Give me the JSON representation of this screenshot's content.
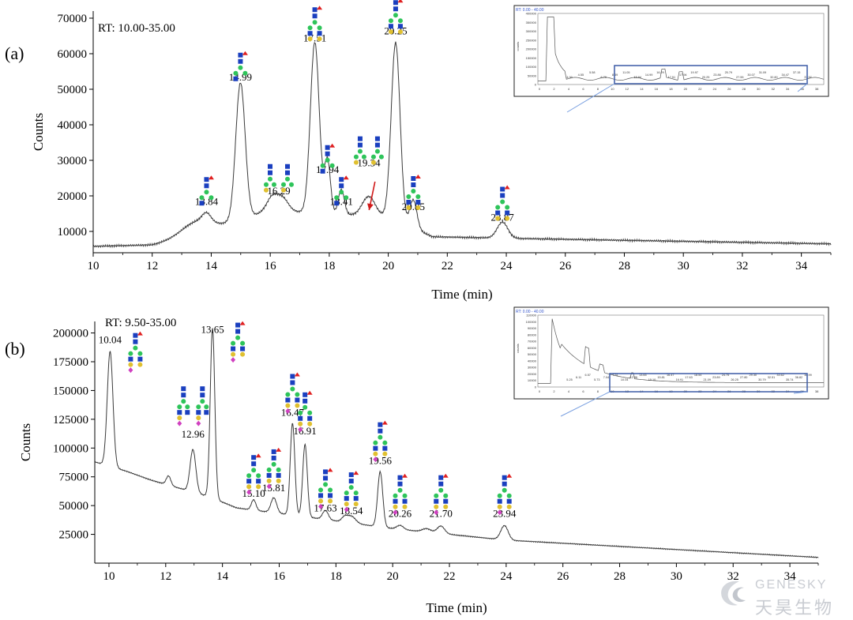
{
  "colors": {
    "trace": "#3a3a3a",
    "axis": "#000000",
    "arrow": "#d01818",
    "inset_box": "#3b5aa5",
    "inset_lines": "#7aa0e0",
    "watermark": "#c9ccd2"
  },
  "glycan_colors": {
    "blue_square": "#1a3fbf",
    "green_circle": "#2ec45a",
    "yellow_circle": "#e0c030",
    "red_triangle": "#e02020",
    "pink_diamond": "#d040c0"
  },
  "watermark": {
    "en": "GENESKY",
    "cn": "天昊生物"
  },
  "chart_data": [
    {
      "type": "line",
      "panel_label": "(a)",
      "rt_label": "RT: 10.00-35.00",
      "xlabel": "Time (min)",
      "ylabel": "Counts",
      "xlim": [
        10,
        35
      ],
      "ylim": [
        4000,
        72000
      ],
      "xticks": [
        10,
        12,
        14,
        16,
        18,
        20,
        22,
        24,
        26,
        28,
        30,
        32,
        34
      ],
      "yticks": [
        10000,
        20000,
        30000,
        40000,
        50000,
        60000,
        70000
      ],
      "baseline": {
        "x": [
          10,
          12,
          13,
          16,
          20,
          21.5,
          24.5,
          35
        ],
        "y": [
          5800,
          6200,
          8000,
          16000,
          14000,
          8500,
          8000,
          6500
        ]
      },
      "peaks": [
        {
          "rt": 13.45,
          "height": 3500,
          "width": 0.5
        },
        {
          "rt": 13.84,
          "height": 2500,
          "width": 0.15
        },
        {
          "rt": 14.99,
          "height": 38500,
          "width": 0.16
        },
        {
          "rt": 16.1,
          "height": 4000,
          "width": 0.2
        },
        {
          "rt": 16.45,
          "height": 3000,
          "width": 0.18
        },
        {
          "rt": 17.51,
          "height": 48000,
          "width": 0.15
        },
        {
          "rt": 17.94,
          "height": 15000,
          "width": 0.1
        },
        {
          "rt": 18.41,
          "height": 7000,
          "width": 0.1
        },
        {
          "rt": 19.34,
          "height": 5500,
          "width": 0.22
        },
        {
          "rt": 20.25,
          "height": 50000,
          "width": 0.15
        },
        {
          "rt": 20.85,
          "height": 8000,
          "width": 0.12
        },
        {
          "rt": 23.87,
          "height": 4500,
          "width": 0.18
        }
      ],
      "annotations": [
        {
          "label": "13.84",
          "x": 13.84,
          "y": 17500,
          "glycan": "a"
        },
        {
          "label": "14.99",
          "x": 14.99,
          "y": 52500,
          "glycan": "a"
        },
        {
          "label": "16.29",
          "x": 16.29,
          "y": 20500,
          "glycan": "pair"
        },
        {
          "label": "17.51",
          "x": 17.51,
          "y": 63500,
          "glycan": "c"
        },
        {
          "label": "17.94",
          "x": 17.94,
          "y": 26500,
          "glycan": "a"
        },
        {
          "label": "18.41",
          "x": 18.41,
          "y": 17500,
          "glycan": "a"
        },
        {
          "label": "19.34",
          "x": 19.34,
          "y": 28300,
          "glycan": "pair"
        },
        {
          "label": "20.25",
          "x": 20.25,
          "y": 65500,
          "glycan": "c"
        },
        {
          "label": "20.85",
          "x": 20.85,
          "y": 16000,
          "glycan": "c"
        },
        {
          "label": "23.87",
          "x": 23.87,
          "y": 13000,
          "glycan": "c"
        }
      ],
      "arrow": {
        "from": [
          19.55,
          24000
        ],
        "to": [
          19.35,
          16000
        ]
      },
      "inset": {
        "title": "RT: 0.00 - 40.00",
        "ylabel": "counts",
        "yticks": [
          "400000",
          "350000",
          "300000",
          "250000",
          "200000",
          "150000",
          "100000",
          "50000",
          "0"
        ],
        "xticks": [
          "0",
          "2",
          "4",
          "6",
          "8",
          "10",
          "12",
          "14",
          "16",
          "18",
          "20",
          "22",
          "24",
          "26",
          "28",
          "30",
          "32",
          "34",
          "36",
          "38"
        ],
        "peak_labels": [
          "4.00",
          "4.55",
          "5.58",
          "6.79",
          "8.39",
          "11.05",
          "13.84",
          "14.99",
          "16.29",
          "17.51",
          "17.94",
          "19.97",
          "20.25",
          "23.86",
          "25.79",
          "27.55",
          "30.07",
          "31.09",
          "32.80",
          "34.47",
          "37.15",
          "37.97"
        ]
      }
    },
    {
      "type": "line",
      "panel_label": "(b)",
      "rt_label": "RT: 9.50-35.00",
      "xlabel": "Time (min)",
      "ylabel": "Counts",
      "xlim": [
        9.5,
        35
      ],
      "ylim": [
        0,
        210000
      ],
      "xticks": [
        10,
        12,
        14,
        16,
        18,
        20,
        22,
        24,
        26,
        28,
        30,
        32,
        34
      ],
      "yticks": [
        25000,
        50000,
        75000,
        100000,
        125000,
        150000,
        175000,
        200000
      ],
      "baseline": {
        "x": [
          9.5,
          10.6,
          11.5,
          13.5,
          14.5,
          17,
          20,
          24,
          35
        ],
        "y": [
          88000,
          80000,
          72000,
          58000,
          48000,
          40000,
          30000,
          20000,
          5000
        ]
      },
      "peaks": [
        {
          "rt": 10.04,
          "height": 100000,
          "width": 0.1
        },
        {
          "rt": 12.1,
          "height": 8000,
          "width": 0.08
        },
        {
          "rt": 12.96,
          "height": 37000,
          "width": 0.1
        },
        {
          "rt": 13.65,
          "height": 148000,
          "width": 0.08
        },
        {
          "rt": 15.1,
          "height": 9000,
          "width": 0.08
        },
        {
          "rt": 15.81,
          "height": 13000,
          "width": 0.1
        },
        {
          "rt": 16.47,
          "height": 80000,
          "width": 0.08
        },
        {
          "rt": 16.91,
          "height": 63000,
          "width": 0.08
        },
        {
          "rt": 17.63,
          "height": 8000,
          "width": 0.1
        },
        {
          "rt": 18.3,
          "height": 4000,
          "width": 0.1
        },
        {
          "rt": 18.54,
          "height": 6000,
          "width": 0.15
        },
        {
          "rt": 19.56,
          "height": 48000,
          "width": 0.09
        },
        {
          "rt": 20.26,
          "height": 3500,
          "width": 0.12
        },
        {
          "rt": 21.2,
          "height": 3000,
          "width": 0.15
        },
        {
          "rt": 21.7,
          "height": 6500,
          "width": 0.13
        },
        {
          "rt": 23.94,
          "height": 12500,
          "width": 0.13
        }
      ],
      "annotations": [
        {
          "label": "10.04",
          "x": 10.04,
          "y": 191000,
          "glycan": "b_side"
        },
        {
          "label": "12.96",
          "x": 12.96,
          "y": 109000,
          "glycan": "pair_b"
        },
        {
          "label": "13.65",
          "x": 13.65,
          "y": 200000,
          "glycan": "b_side"
        },
        {
          "label": "15.10",
          "x": 15.1,
          "y": 57500,
          "glycan": "b"
        },
        {
          "label": "15.81",
          "x": 15.81,
          "y": 62500,
          "glycan": "b"
        },
        {
          "label": "16.47",
          "x": 16.47,
          "y": 128000,
          "glycan": "b"
        },
        {
          "label": "16.91",
          "x": 16.91,
          "y": 112000,
          "glycan": "b"
        },
        {
          "label": "17.63",
          "x": 17.63,
          "y": 45000,
          "glycan": "b"
        },
        {
          "label": "18.54",
          "x": 18.54,
          "y": 42500,
          "glycan": "b"
        },
        {
          "label": "19.56",
          "x": 19.56,
          "y": 86000,
          "glycan": "b"
        },
        {
          "label": "20.26",
          "x": 20.26,
          "y": 40000,
          "glycan": "b"
        },
        {
          "label": "21.70",
          "x": 21.7,
          "y": 40000,
          "glycan": "b"
        },
        {
          "label": "23.94",
          "x": 23.94,
          "y": 40000,
          "glycan": "b"
        }
      ],
      "inset": {
        "title": "RT: 0.00 - 40.00",
        "ylabel": "counts",
        "yticks": [
          "110000",
          "100000",
          "90000",
          "80000",
          "70000",
          "60000",
          "50000",
          "40000",
          "30000",
          "20000",
          "10000",
          "0"
        ],
        "xticks": [
          "0",
          "2",
          "4",
          "6",
          "8",
          "10",
          "12",
          "14",
          "16",
          "18",
          "20",
          "22",
          "24",
          "26",
          "28",
          "30",
          "32",
          "34",
          "36",
          "38"
        ],
        "peak_labels": [
          "5.25",
          "6.11",
          "6.57",
          "5.73",
          "7.04",
          "7.51",
          "10.04",
          "12.96",
          "13.65",
          "15.10",
          "15.81",
          "16.47",
          "16.91",
          "17.63",
          "18.54",
          "21.09",
          "23.89",
          "24.75",
          "26.25",
          "27.80",
          "29.30",
          "30.79",
          "32.51",
          "33.62",
          "35.74",
          "36.82",
          "38.99"
        ]
      }
    }
  ]
}
